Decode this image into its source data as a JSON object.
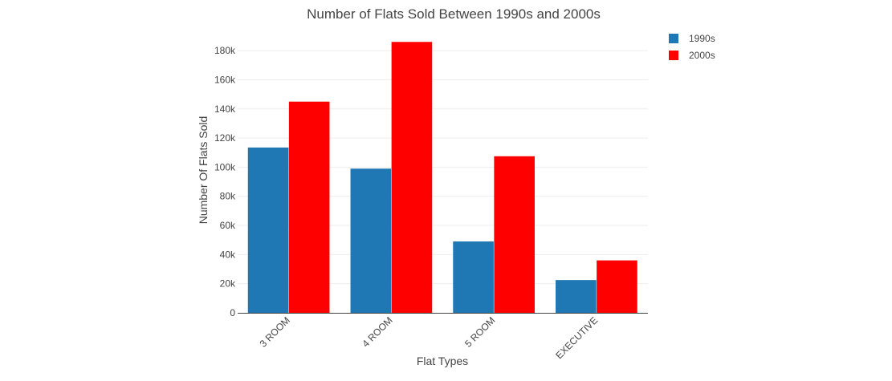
{
  "chart_data": {
    "type": "bar",
    "title": "Number of Flats Sold Between 1990s and 2000s",
    "xlabel": "Flat Types",
    "ylabel": "Number Of Flats Sold",
    "categories": [
      "3 ROOM",
      "4 ROOM",
      "5 ROOM",
      "EXECUTIVE"
    ],
    "series": [
      {
        "name": "1990s",
        "color": "#1f77b4",
        "values": [
          113500,
          99000,
          49000,
          22500
        ]
      },
      {
        "name": "2000s",
        "color": "#ff0000",
        "values": [
          145000,
          186000,
          107500,
          36000
        ]
      }
    ],
    "ylim": [
      0,
      190000
    ],
    "yticks": [
      0,
      20000,
      40000,
      60000,
      80000,
      100000,
      120000,
      140000,
      160000,
      180000
    ],
    "ytick_labels": [
      "0",
      "20k",
      "40k",
      "60k",
      "80k",
      "100k",
      "120k",
      "140k",
      "160k",
      "180k"
    ],
    "grid": true,
    "legend_position": "top-right"
  }
}
